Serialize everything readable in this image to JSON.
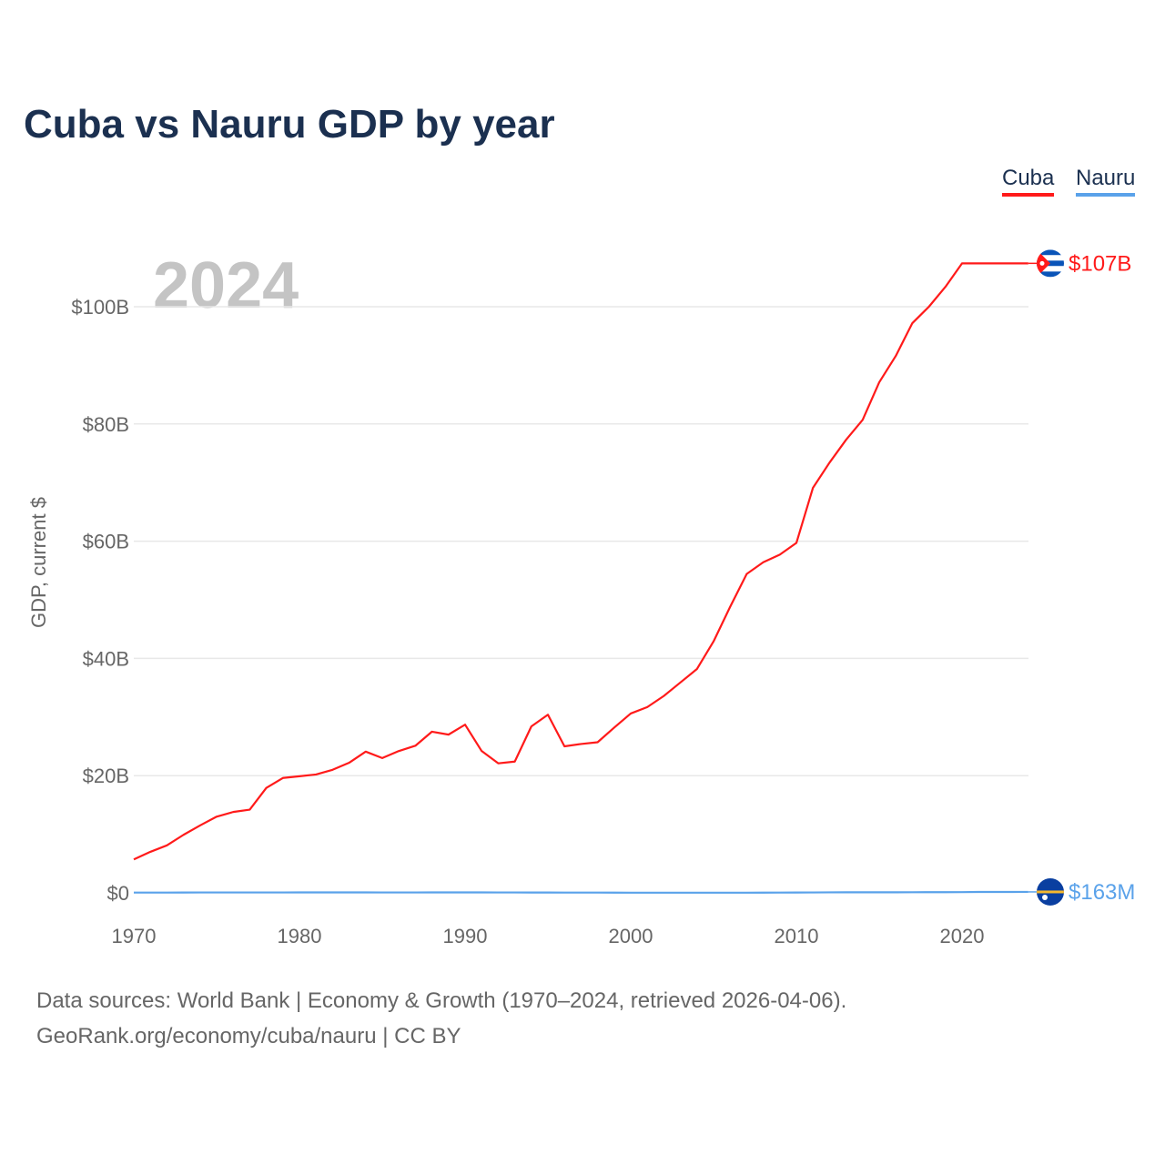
{
  "chart_data": {
    "type": "line",
    "title": "Cuba vs Nauru GDP by year",
    "ylabel": "GDP, current $",
    "xlabel": "",
    "year_watermark": "2024",
    "xlim": [
      1970,
      2024
    ],
    "ylim": [
      0,
      110
    ],
    "y_unit": "billion USD",
    "x_ticks": [
      1970,
      1980,
      1990,
      2000,
      2010,
      2020
    ],
    "y_ticks": [
      0,
      20,
      40,
      60,
      80,
      100
    ],
    "y_tick_labels": [
      "$0",
      "$20B",
      "$40B",
      "$60B",
      "$80B",
      "$100B"
    ],
    "grid": true,
    "legend_position": "top-right",
    "x": [
      1970,
      1971,
      1972,
      1973,
      1974,
      1975,
      1976,
      1977,
      1978,
      1979,
      1980,
      1981,
      1982,
      1983,
      1984,
      1985,
      1986,
      1987,
      1988,
      1989,
      1990,
      1991,
      1992,
      1993,
      1994,
      1995,
      1996,
      1997,
      1998,
      1999,
      2000,
      2001,
      2002,
      2003,
      2004,
      2005,
      2006,
      2007,
      2008,
      2009,
      2010,
      2011,
      2012,
      2013,
      2014,
      2015,
      2016,
      2017,
      2018,
      2019,
      2020,
      2021,
      2022,
      2023,
      2024
    ],
    "series": [
      {
        "name": "Cuba",
        "color": "#ff1a1a",
        "end_label": "$107B",
        "flag": "cuba-flag",
        "values": [
          5.7,
          7.0,
          8.1,
          9.9,
          11.5,
          13.0,
          13.8,
          14.2,
          17.9,
          19.6,
          19.9,
          20.2,
          21.0,
          22.2,
          24.1,
          23.0,
          24.2,
          25.1,
          27.5,
          27.0,
          28.7,
          24.2,
          22.1,
          22.4,
          28.4,
          30.4,
          25.0,
          25.4,
          25.7,
          28.2,
          30.6,
          31.7,
          33.6,
          35.9,
          38.2,
          42.9,
          48.8,
          54.4,
          56.4,
          57.7,
          59.7,
          69.1,
          73.4,
          77.3,
          80.7,
          87.1,
          91.6,
          97.2,
          100.0,
          103.4,
          107.4,
          107.4,
          107.4,
          107.4,
          107.4
        ]
      },
      {
        "name": "Nauru",
        "color": "#5aa2ea",
        "end_label": "$163M",
        "flag": "nauru-flag",
        "values": [
          0.05,
          0.05,
          0.05,
          0.06,
          0.07,
          0.07,
          0.07,
          0.07,
          0.07,
          0.07,
          0.08,
          0.08,
          0.08,
          0.08,
          0.08,
          0.07,
          0.07,
          0.07,
          0.08,
          0.08,
          0.08,
          0.08,
          0.07,
          0.07,
          0.06,
          0.06,
          0.05,
          0.05,
          0.05,
          0.04,
          0.03,
          0.03,
          0.03,
          0.03,
          0.03,
          0.03,
          0.03,
          0.03,
          0.04,
          0.05,
          0.06,
          0.07,
          0.09,
          0.1,
          0.1,
          0.1,
          0.1,
          0.11,
          0.12,
          0.12,
          0.13,
          0.15,
          0.15,
          0.15,
          0.163
        ]
      }
    ]
  },
  "footer": {
    "line1": "Data sources: World Bank | Economy & Growth (1970–2024, retrieved 2026-04-06).",
    "line2": "GeoRank.org/economy/cuba/nauru | CC BY"
  }
}
